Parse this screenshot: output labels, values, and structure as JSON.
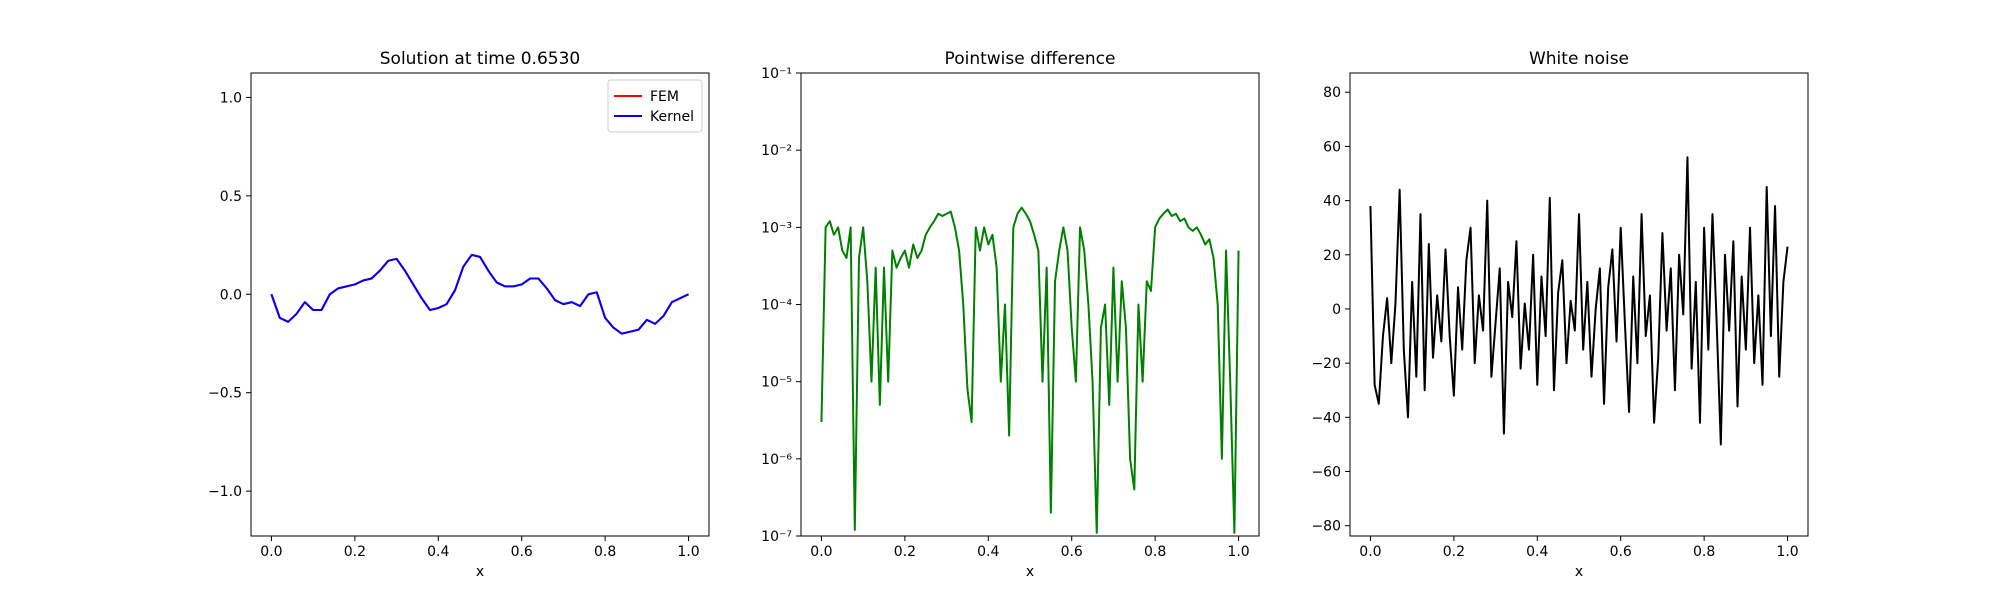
{
  "chart_data": [
    {
      "type": "line",
      "title": "Solution at time 0.6530",
      "xlabel": "x",
      "x": [
        0,
        0.02,
        0.04,
        0.06,
        0.08,
        0.1,
        0.12,
        0.14,
        0.16,
        0.18,
        0.2,
        0.22,
        0.24,
        0.26,
        0.28,
        0.3,
        0.32,
        0.34,
        0.36,
        0.38,
        0.4,
        0.42,
        0.44,
        0.46,
        0.48,
        0.5,
        0.52,
        0.54,
        0.56,
        0.58,
        0.6,
        0.62,
        0.64,
        0.66,
        0.68,
        0.7,
        0.72,
        0.74,
        0.76,
        0.78,
        0.8,
        0.82,
        0.84,
        0.86,
        0.88,
        0.9,
        0.92,
        0.94,
        0.96,
        0.98,
        1
      ],
      "series": [
        {
          "name": "FEM",
          "color": "#ff0000",
          "values": [
            0,
            -0.12,
            -0.14,
            -0.1,
            -0.04,
            -0.08,
            -0.08,
            0,
            0.03,
            0.04,
            0.05,
            0.07,
            0.08,
            0.12,
            0.17,
            0.18,
            0.12,
            0.05,
            -0.02,
            -0.08,
            -0.07,
            -0.05,
            0.02,
            0.14,
            0.2,
            0.19,
            0.12,
            0.06,
            0.04,
            0.04,
            0.05,
            0.08,
            0.08,
            0.03,
            -0.03,
            -0.05,
            -0.04,
            -0.06,
            0,
            0.01,
            -0.12,
            -0.17,
            -0.2,
            -0.19,
            -0.18,
            -0.13,
            -0.15,
            -0.11,
            -0.04,
            -0.02,
            0
          ]
        },
        {
          "name": "Kernel",
          "color": "#0000ff",
          "values": [
            0,
            -0.12,
            -0.14,
            -0.1,
            -0.04,
            -0.08,
            -0.08,
            0,
            0.03,
            0.04,
            0.05,
            0.07,
            0.08,
            0.12,
            0.17,
            0.18,
            0.12,
            0.05,
            -0.02,
            -0.08,
            -0.07,
            -0.05,
            0.02,
            0.14,
            0.2,
            0.19,
            0.12,
            0.06,
            0.04,
            0.04,
            0.05,
            0.08,
            0.08,
            0.03,
            -0.03,
            -0.05,
            -0.04,
            -0.06,
            0,
            0.01,
            -0.12,
            -0.17,
            -0.2,
            -0.19,
            -0.18,
            -0.13,
            -0.15,
            -0.11,
            -0.04,
            -0.02,
            0
          ]
        }
      ],
      "xlim": [
        -0.049,
        1.049
      ],
      "ylim": [
        -1.228,
        1.124
      ],
      "xticks": [
        {
          "value": 0,
          "label": "0.0"
        },
        0.2,
        0.4,
        0.6,
        0.8,
        {
          "value": 1,
          "label": "1.0"
        }
      ],
      "yticks": [
        {
          "value": -1,
          "label": "−1.0"
        },
        {
          "value": -0.5,
          "label": "−0.5"
        },
        {
          "value": 0,
          "label": "0.0"
        },
        0.5,
        {
          "value": 1,
          "label": "1.0"
        }
      ],
      "legend": "upper right"
    },
    {
      "type": "line",
      "title": "Pointwise difference",
      "xlabel": "x",
      "yscale": "log",
      "color": "#008000",
      "x": [
        0,
        0.01,
        0.02,
        0.03,
        0.04,
        0.05,
        0.06,
        0.07,
        0.08,
        0.09,
        0.1,
        0.11,
        0.12,
        0.13,
        0.14,
        0.15,
        0.16,
        0.17,
        0.18,
        0.19,
        0.2,
        0.21,
        0.22,
        0.23,
        0.24,
        0.25,
        0.26,
        0.27,
        0.28,
        0.29,
        0.3,
        0.31,
        0.32,
        0.33,
        0.34,
        0.35,
        0.36,
        0.37,
        0.38,
        0.39,
        0.4,
        0.41,
        0.42,
        0.43,
        0.44,
        0.45,
        0.46,
        0.47,
        0.48,
        0.49,
        0.5,
        0.51,
        0.52,
        0.53,
        0.54,
        0.55,
        0.56,
        0.57,
        0.58,
        0.59,
        0.6,
        0.61,
        0.62,
        0.63,
        0.64,
        0.65,
        0.66,
        0.67,
        0.68,
        0.69,
        0.7,
        0.71,
        0.72,
        0.73,
        0.74,
        0.75,
        0.76,
        0.77,
        0.78,
        0.79,
        0.8,
        0.81,
        0.82,
        0.83,
        0.84,
        0.85,
        0.86,
        0.87,
        0.88,
        0.89,
        0.9,
        0.91,
        0.92,
        0.93,
        0.94,
        0.95,
        0.96,
        0.97,
        0.98,
        0.99,
        1
      ],
      "values": [
        3e-06,
        0.001,
        0.0012,
        0.0008,
        0.001,
        0.0005,
        0.0004,
        0.001,
        1.2e-07,
        0.0004,
        0.001,
        0.0002,
        1e-05,
        0.0003,
        5e-06,
        0.0003,
        1e-05,
        0.0005,
        0.0003,
        0.0004,
        0.0005,
        0.0003,
        0.0006,
        0.0004,
        0.0005,
        0.0008,
        0.001,
        0.0012,
        0.0015,
        0.0014,
        0.0015,
        0.0016,
        0.001,
        0.0005,
        0.0001,
        8e-06,
        3e-06,
        0.001,
        0.0005,
        0.001,
        0.0006,
        0.0008,
        0.0003,
        1e-05,
        0.0001,
        2e-06,
        0.001,
        0.0015,
        0.0018,
        0.0015,
        0.0012,
        0.0008,
        0.0005,
        1e-05,
        0.0003,
        2e-07,
        0.0002,
        0.0005,
        0.001,
        0.0005,
        5e-05,
        1e-05,
        0.001,
        0.0005,
        0.0001,
        1e-05,
        1.1e-07,
        5e-05,
        0.0001,
        5e-06,
        0.0003,
        1e-05,
        0.0002,
        5e-05,
        1e-06,
        4e-07,
        0.0001,
        1e-05,
        0.0002,
        0.00015,
        0.001,
        0.0013,
        0.0015,
        0.0017,
        0.0014,
        0.0015,
        0.0012,
        0.0013,
        0.001,
        0.0009,
        0.001,
        0.0008,
        0.0006,
        0.0007,
        0.0004,
        0.0001,
        1e-06,
        0.0005,
        1e-05,
        1.1e-07,
        0.0005
      ],
      "xlim": [
        -0.049,
        1.049
      ],
      "ylim": [
        1e-07,
        0.1
      ],
      "xticks": [
        {
          "value": 0,
          "label": "0.0"
        },
        0.2,
        0.4,
        0.6,
        0.8,
        {
          "value": 1,
          "label": "1.0"
        }
      ],
      "yticks": [
        {
          "value": 1e-07,
          "label": "10⁻⁷"
        },
        {
          "value": 1e-06,
          "label": "10⁻⁶"
        },
        {
          "value": 1e-05,
          "label": "10⁻⁵"
        },
        {
          "value": 0.0001,
          "label": "10⁻⁴"
        },
        {
          "value": 0.001,
          "label": "10⁻³"
        },
        {
          "value": 0.01,
          "label": "10⁻²"
        },
        {
          "value": 0.1,
          "label": "10⁻¹"
        }
      ]
    },
    {
      "type": "line",
      "title": "White noise",
      "xlabel": "x",
      "color": "#000000",
      "x": [
        0,
        0.01,
        0.02,
        0.03,
        0.04,
        0.05,
        0.06,
        0.07,
        0.08,
        0.09,
        0.1,
        0.11,
        0.12,
        0.13,
        0.14,
        0.15,
        0.16,
        0.17,
        0.18,
        0.19,
        0.2,
        0.21,
        0.22,
        0.23,
        0.24,
        0.25,
        0.26,
        0.27,
        0.28,
        0.29,
        0.3,
        0.31,
        0.32,
        0.33,
        0.34,
        0.35,
        0.36,
        0.37,
        0.38,
        0.39,
        0.4,
        0.41,
        0.42,
        0.43,
        0.44,
        0.45,
        0.46,
        0.47,
        0.48,
        0.49,
        0.5,
        0.51,
        0.52,
        0.53,
        0.54,
        0.55,
        0.56,
        0.57,
        0.58,
        0.59,
        0.6,
        0.61,
        0.62,
        0.63,
        0.64,
        0.65,
        0.66,
        0.67,
        0.68,
        0.69,
        0.7,
        0.71,
        0.72,
        0.73,
        0.74,
        0.75,
        0.76,
        0.77,
        0.78,
        0.79,
        0.8,
        0.81,
        0.82,
        0.83,
        0.84,
        0.85,
        0.86,
        0.87,
        0.88,
        0.89,
        0.9,
        0.91,
        0.92,
        0.93,
        0.94,
        0.95,
        0.96,
        0.97,
        0.98,
        0.99,
        1
      ],
      "values": [
        38,
        -28,
        -35,
        -10,
        4,
        -20,
        2,
        44,
        -15,
        -40,
        10,
        -25,
        35,
        -30,
        24,
        -18,
        5,
        -12,
        22,
        -10,
        -32,
        8,
        -15,
        18,
        30,
        -20,
        5,
        -8,
        40,
        -25,
        -5,
        15,
        -46,
        10,
        -3,
        25,
        -22,
        2,
        -15,
        20,
        -28,
        12,
        -10,
        41,
        -30,
        6,
        18,
        -20,
        3,
        -8,
        35,
        -15,
        10,
        -25,
        0,
        15,
        -35,
        8,
        22,
        -12,
        30,
        -5,
        -38,
        12,
        -20,
        35,
        -10,
        5,
        -42,
        -18,
        28,
        -8,
        15,
        -30,
        20,
        -2,
        56,
        -22,
        10,
        -42,
        30,
        -15,
        35,
        -5,
        -50,
        20,
        -8,
        25,
        -36,
        12,
        -15,
        30,
        -20,
        5,
        -28,
        45,
        -10,
        38,
        -25,
        10,
        23
      ],
      "xlim": [
        -0.049,
        1.049
      ],
      "ylim": [
        -83.8,
        87.1
      ],
      "xticks": [
        {
          "value": 0,
          "label": "0.0"
        },
        0.2,
        0.4,
        0.6,
        0.8,
        {
          "value": 1,
          "label": "1.0"
        }
      ],
      "yticks": [
        {
          "value": -80,
          "label": "−80"
        },
        {
          "value": -60,
          "label": "−60"
        },
        {
          "value": -40,
          "label": "−40"
        },
        {
          "value": -20,
          "label": "−20"
        },
        0,
        20,
        40,
        60,
        80
      ]
    }
  ]
}
